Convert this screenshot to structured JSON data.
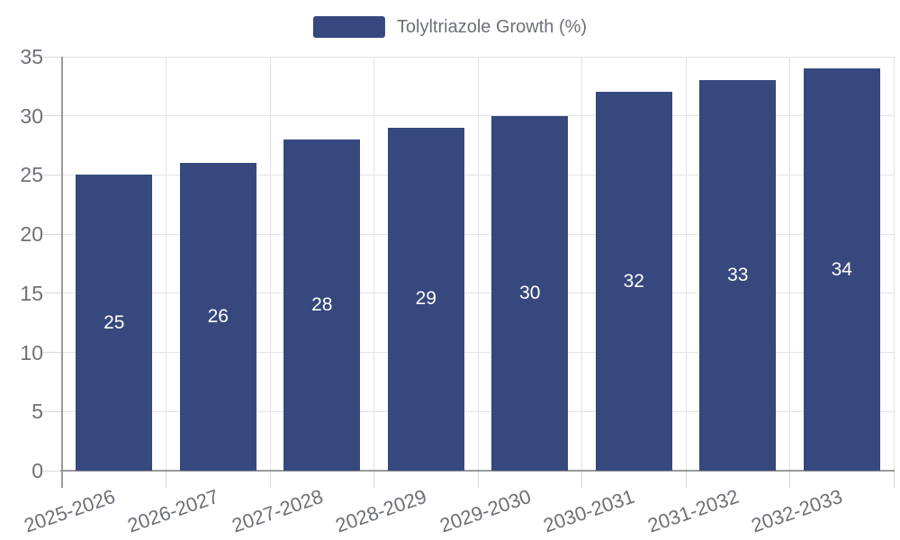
{
  "legend": {
    "label": "Tolyltriazole Growth (%)"
  },
  "chart_data": {
    "type": "bar",
    "title": "",
    "series_name": "Tolyltriazole Growth (%)",
    "categories": [
      "2025-2026",
      "2026-2027",
      "2027-2028",
      "2028-2029",
      "2029-2030",
      "2030-2031",
      "2031-2032",
      "2032-2033"
    ],
    "values": [
      25,
      26,
      28,
      29,
      30,
      32,
      33,
      34
    ],
    "xlabel": "",
    "ylabel": "",
    "ylim": [
      0,
      35
    ],
    "yticks": [
      0,
      5,
      10,
      15,
      20,
      25,
      30,
      35
    ],
    "grid": true,
    "legend_position": "top-center",
    "value_label_position": "inside-middle",
    "x_label_rotation_deg": -19
  },
  "colors": {
    "bar": "#36487e",
    "axis_line": "#9a9a9a",
    "tick_line": "#d9d9de",
    "grid_line": "#e3e3e8",
    "axis_label": "#6e7079",
    "value_label": "#ffffff",
    "background": "#ffffff"
  }
}
